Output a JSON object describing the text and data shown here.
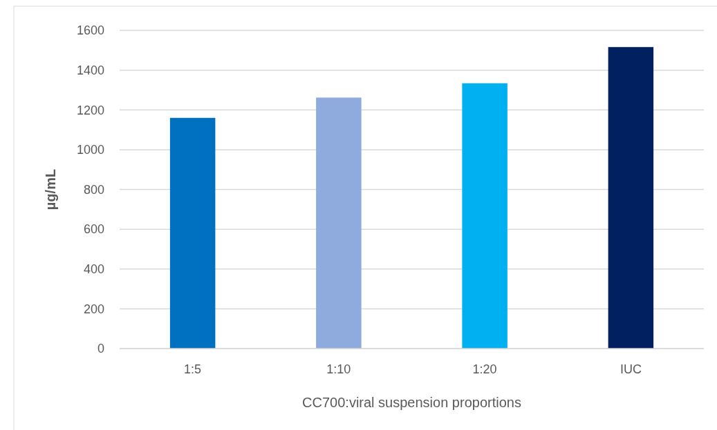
{
  "chart_data": {
    "type": "bar",
    "xlabel": "CC700:viral suspension proportions",
    "ylabel": "µg/mL",
    "categories": [
      "1:5",
      "1:10",
      "1:20",
      "IUC"
    ],
    "values": [
      1160,
      1262,
      1334,
      1516
    ],
    "colors": [
      "#0070c0",
      "#8faadc",
      "#00b0f0",
      "#002060"
    ],
    "ylim": [
      0,
      1600
    ],
    "yticks": [
      0,
      200,
      400,
      600,
      800,
      1000,
      1200,
      1400,
      1600
    ],
    "grid": "y"
  }
}
